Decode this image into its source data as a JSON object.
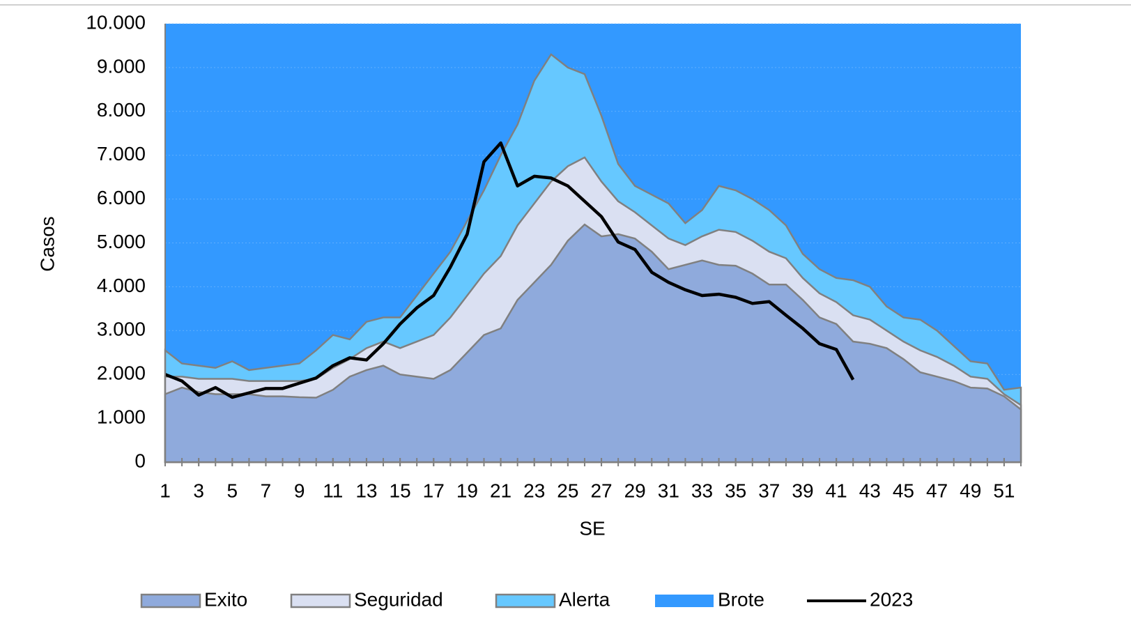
{
  "chart_data": {
    "type": "area",
    "x_label": "SE",
    "y_label": "Casos",
    "x": [
      1,
      2,
      3,
      4,
      5,
      6,
      7,
      8,
      9,
      10,
      11,
      12,
      13,
      14,
      15,
      16,
      17,
      18,
      19,
      20,
      21,
      22,
      23,
      24,
      25,
      26,
      27,
      28,
      29,
      30,
      31,
      32,
      33,
      34,
      35,
      36,
      37,
      38,
      39,
      40,
      41,
      42,
      43,
      44,
      45,
      46,
      47,
      48,
      49,
      50,
      51,
      52
    ],
    "xlim": [
      1,
      52
    ],
    "xticks": [
      1,
      3,
      5,
      7,
      9,
      11,
      13,
      15,
      17,
      19,
      21,
      23,
      25,
      27,
      29,
      31,
      33,
      35,
      37,
      39,
      41,
      43,
      45,
      47,
      49,
      51
    ],
    "ylim": [
      0,
      10000
    ],
    "yticks": [
      0,
      {
        "value": 1000,
        "label": "1.000"
      },
      {
        "value": 2000,
        "label": "2.000"
      },
      {
        "value": 3000,
        "label": "3.000"
      },
      {
        "value": 4000,
        "label": "4.000"
      },
      {
        "value": 5000,
        "label": "5.000"
      },
      {
        "value": 6000,
        "label": "6.000"
      },
      {
        "value": 7000,
        "label": "7.000"
      },
      {
        "value": 8000,
        "label": "8.000"
      },
      {
        "value": 9000,
        "label": "9.000"
      },
      {
        "value": 10000,
        "label": "10.000"
      }
    ],
    "grid": true,
    "legend": "bottom",
    "series": [
      {
        "name": "Exito",
        "color": "#8faadc",
        "values": [
          1550,
          1700,
          1600,
          1550,
          1550,
          1550,
          1500,
          1500,
          1480,
          1470,
          1650,
          1950,
          2100,
          2200,
          2000,
          1950,
          1900,
          2100,
          2500,
          2900,
          3050,
          3700,
          4100,
          4500,
          5050,
          5420,
          5150,
          5200,
          5100,
          4800,
          4400,
          4500,
          4600,
          4500,
          4480,
          4300,
          4050,
          4050,
          3700,
          3300,
          3150,
          2750,
          2700,
          2600,
          2350,
          2050,
          1950,
          1850,
          1700,
          1680,
          1500,
          1200
        ]
      },
      {
        "name": "Seguridad",
        "color": "#dae0f2",
        "values": [
          1950,
          1950,
          1900,
          1900,
          1900,
          1850,
          1850,
          1850,
          1850,
          1900,
          2150,
          2350,
          2600,
          2750,
          2600,
          2750,
          2900,
          3300,
          3800,
          4300,
          4700,
          5400,
          5900,
          6400,
          6750,
          6950,
          6400,
          5950,
          5700,
          5400,
          5100,
          4950,
          5150,
          5300,
          5250,
          5050,
          4800,
          4650,
          4200,
          3850,
          3650,
          3350,
          3250,
          3000,
          2750,
          2550,
          2400,
          2200,
          1950,
          1900,
          1550,
          1300
        ]
      },
      {
        "name": "Alerta",
        "color": "#66c8ff",
        "values": [
          2550,
          2250,
          2200,
          2150,
          2300,
          2100,
          2150,
          2200,
          2250,
          2550,
          2900,
          2800,
          3200,
          3300,
          3300,
          3800,
          4300,
          4800,
          5500,
          6200,
          7000,
          7700,
          8700,
          9300,
          9000,
          8850,
          7900,
          6800,
          6300,
          6100,
          5900,
          5450,
          5750,
          6300,
          6200,
          6000,
          5750,
          5400,
          4750,
          4400,
          4200,
          4150,
          4000,
          3550,
          3300,
          3250,
          3000,
          2650,
          2300,
          2250,
          1650,
          1700
        ]
      },
      {
        "name": "Brote",
        "color": "#3399ff"
      },
      {
        "name": "2023",
        "color": "#000000",
        "line": true,
        "values": [
          2000,
          1850,
          1530,
          1700,
          1480,
          1580,
          1680,
          1680,
          1800,
          1920,
          2200,
          2380,
          2330,
          2700,
          3150,
          3520,
          3800,
          4450,
          5200,
          6850,
          7280,
          6300,
          6520,
          6480,
          6300,
          5950,
          5600,
          5020,
          4850,
          4330,
          4100,
          3930,
          3800,
          3830,
          3760,
          3620,
          3660,
          3350,
          3050,
          2700,
          2570,
          1880,
          null,
          null,
          null,
          null,
          null,
          null,
          null,
          null,
          null,
          null
        ]
      }
    ]
  }
}
